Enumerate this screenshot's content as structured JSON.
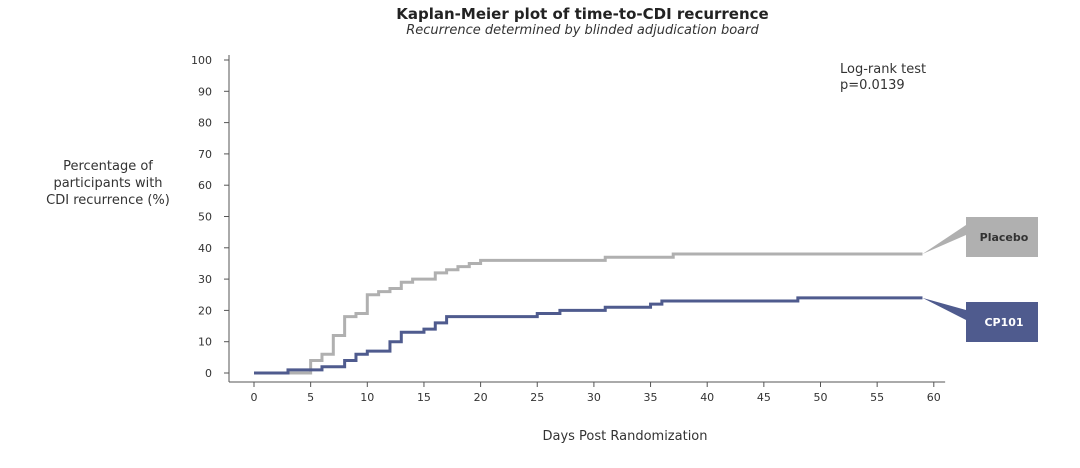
{
  "chart_data": {
    "type": "line",
    "step": true,
    "title": "Kaplan-Meier plot of time-to-CDI recurrence",
    "subtitle": "Recurrence determined by blinded adjudication board",
    "xlabel": "Days Post Randomization",
    "ylabel": [
      "Percentage of",
      "participants with",
      "CDI recurrence (%)"
    ],
    "xlim": [
      -2,
      61
    ],
    "ylim": [
      0,
      100
    ],
    "xticks": [
      0,
      5,
      10,
      15,
      20,
      25,
      30,
      35,
      40,
      45,
      50,
      55,
      60
    ],
    "yticks": [
      0,
      10,
      20,
      30,
      40,
      50,
      60,
      70,
      80,
      90,
      100
    ],
    "grid": false,
    "annotation": [
      "Log-rank test",
      "p=0.0139"
    ],
    "series": [
      {
        "name": "Placebo",
        "color": "#b0b0b0",
        "tag_text": "#333333",
        "points": [
          [
            0,
            0
          ],
          [
            5,
            4
          ],
          [
            6,
            6
          ],
          [
            7,
            12
          ],
          [
            8,
            18
          ],
          [
            9,
            19
          ],
          [
            10,
            25
          ],
          [
            11,
            26
          ],
          [
            12,
            27
          ],
          [
            13,
            29
          ],
          [
            14,
            30
          ],
          [
            16,
            32
          ],
          [
            17,
            33
          ],
          [
            18,
            34
          ],
          [
            19,
            35
          ],
          [
            20,
            36
          ],
          [
            31,
            37
          ],
          [
            37,
            38
          ],
          [
            59,
            38
          ]
        ]
      },
      {
        "name": "CP101",
        "color": "#4f5b8e",
        "tag_text": "#ffffff",
        "points": [
          [
            0,
            0
          ],
          [
            3,
            1
          ],
          [
            6,
            2
          ],
          [
            8,
            4
          ],
          [
            9,
            6
          ],
          [
            10,
            7
          ],
          [
            12,
            10
          ],
          [
            13,
            13
          ],
          [
            15,
            14
          ],
          [
            16,
            16
          ],
          [
            17,
            18
          ],
          [
            25,
            19
          ],
          [
            27,
            20
          ],
          [
            31,
            21
          ],
          [
            35,
            22
          ],
          [
            36,
            23
          ],
          [
            48,
            24
          ],
          [
            59,
            24
          ]
        ]
      }
    ]
  }
}
